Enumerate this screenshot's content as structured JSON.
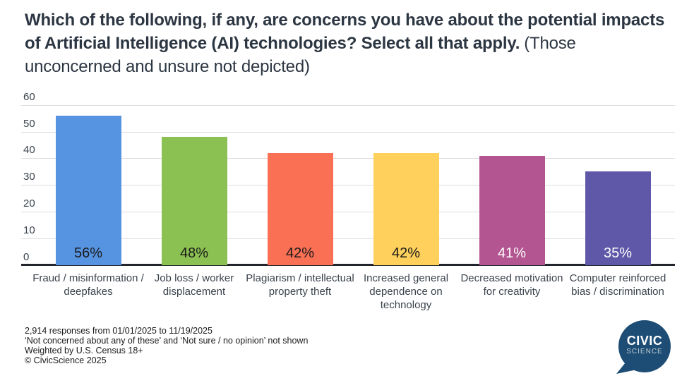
{
  "title": {
    "question_bold": "Which of the following, if any, are concerns you have about the potential impacts of Artificial Intelligence (AI) technologies? Select all that apply.",
    "note": "(Those unconcerned and unsure not depicted)"
  },
  "chart_data": {
    "type": "bar",
    "categories": [
      "Fraud / misinformation / deepfakes",
      "Job loss / worker displacement",
      "Plagiarism / intellectual property theft",
      "Increased general dependence on technology",
      "Decreased motivation for creativity",
      "Computer reinforced bias / discrimination"
    ],
    "values": [
      56,
      48,
      42,
      42,
      41,
      35
    ],
    "data_labels": [
      "56%",
      "48%",
      "42%",
      "42%",
      "41%",
      "35%"
    ],
    "bar_colors": [
      "#5694e2",
      "#8bc152",
      "#fa7055",
      "#ffd05c",
      "#b25590",
      "#5f58a8"
    ],
    "data_label_colors": [
      "#1a1a1a",
      "#1a1a1a",
      "#1a1a1a",
      "#1a1a1a",
      "#ffffff",
      "#ffffff"
    ],
    "xlabel": "",
    "ylabel": "",
    "ylim": [
      0,
      60
    ],
    "yticks": [
      0,
      10,
      20,
      30,
      40,
      50,
      60
    ],
    "grid": true,
    "legend": "none",
    "axis_color": "#22262c",
    "gridline_color": "#dcdcdc"
  },
  "footer": {
    "lines": [
      "2,914 responses from 01/01/2025 to 11/19/2025",
      "‘Not concerned about any of these’ and ‘Not sure / no opinion’ not shown",
      "Weighted by U.S. Census 18+",
      "© CivicScience 2025"
    ]
  },
  "logo": {
    "line1": "CIVIC",
    "line2": "SCIENCE",
    "bg_color": "#1d4d75",
    "line1_color": "#ffffff",
    "line2_color": "#c2cdd6"
  }
}
